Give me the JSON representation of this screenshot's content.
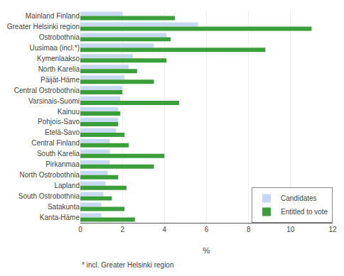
{
  "chart_data": {
    "type": "bar",
    "orientation": "horizontal",
    "categories": [
      "Mainland Finland",
      "Greater Helsinki region",
      "Ostrobothnia",
      "Uusimaa (incl.*)",
      "Kymenlaakso",
      "North Karelia",
      "Päijät-Häme",
      "Central Ostrobothnia",
      "Varsinais-Suomi",
      "Kainuu",
      "Pohjois-Savo",
      "Etelä-Savo",
      "Central Finland",
      "South Karelia",
      "Pirkanmaa",
      "North Ostrobothnia",
      "Lapland",
      "South Ostrobothnia",
      "Satakunta",
      "Kanta-Häme"
    ],
    "series": [
      {
        "name": "Candidates",
        "color": "#c6d9f0",
        "values": [
          2.0,
          5.6,
          4.1,
          3.5,
          2.5,
          2.3,
          2.1,
          2.0,
          1.9,
          1.8,
          1.8,
          1.7,
          1.4,
          1.4,
          1.4,
          1.3,
          1.2,
          1.1,
          1.0,
          1.0
        ]
      },
      {
        "name": "Entitled to vote",
        "color": "#3a9e3a",
        "values": [
          4.5,
          11.0,
          4.3,
          8.8,
          4.1,
          2.7,
          3.5,
          2.0,
          4.7,
          1.9,
          1.8,
          2.1,
          2.3,
          4.0,
          3.5,
          1.8,
          2.2,
          1.5,
          2.1,
          2.6
        ]
      }
    ],
    "xlabel": "%",
    "xlim": [
      0,
      12
    ],
    "xticks": [
      0,
      2,
      4,
      6,
      8,
      10,
      12
    ],
    "grid": true,
    "legend": "lower right",
    "annotations": [
      "* incl. Greater Helsinki region"
    ]
  }
}
